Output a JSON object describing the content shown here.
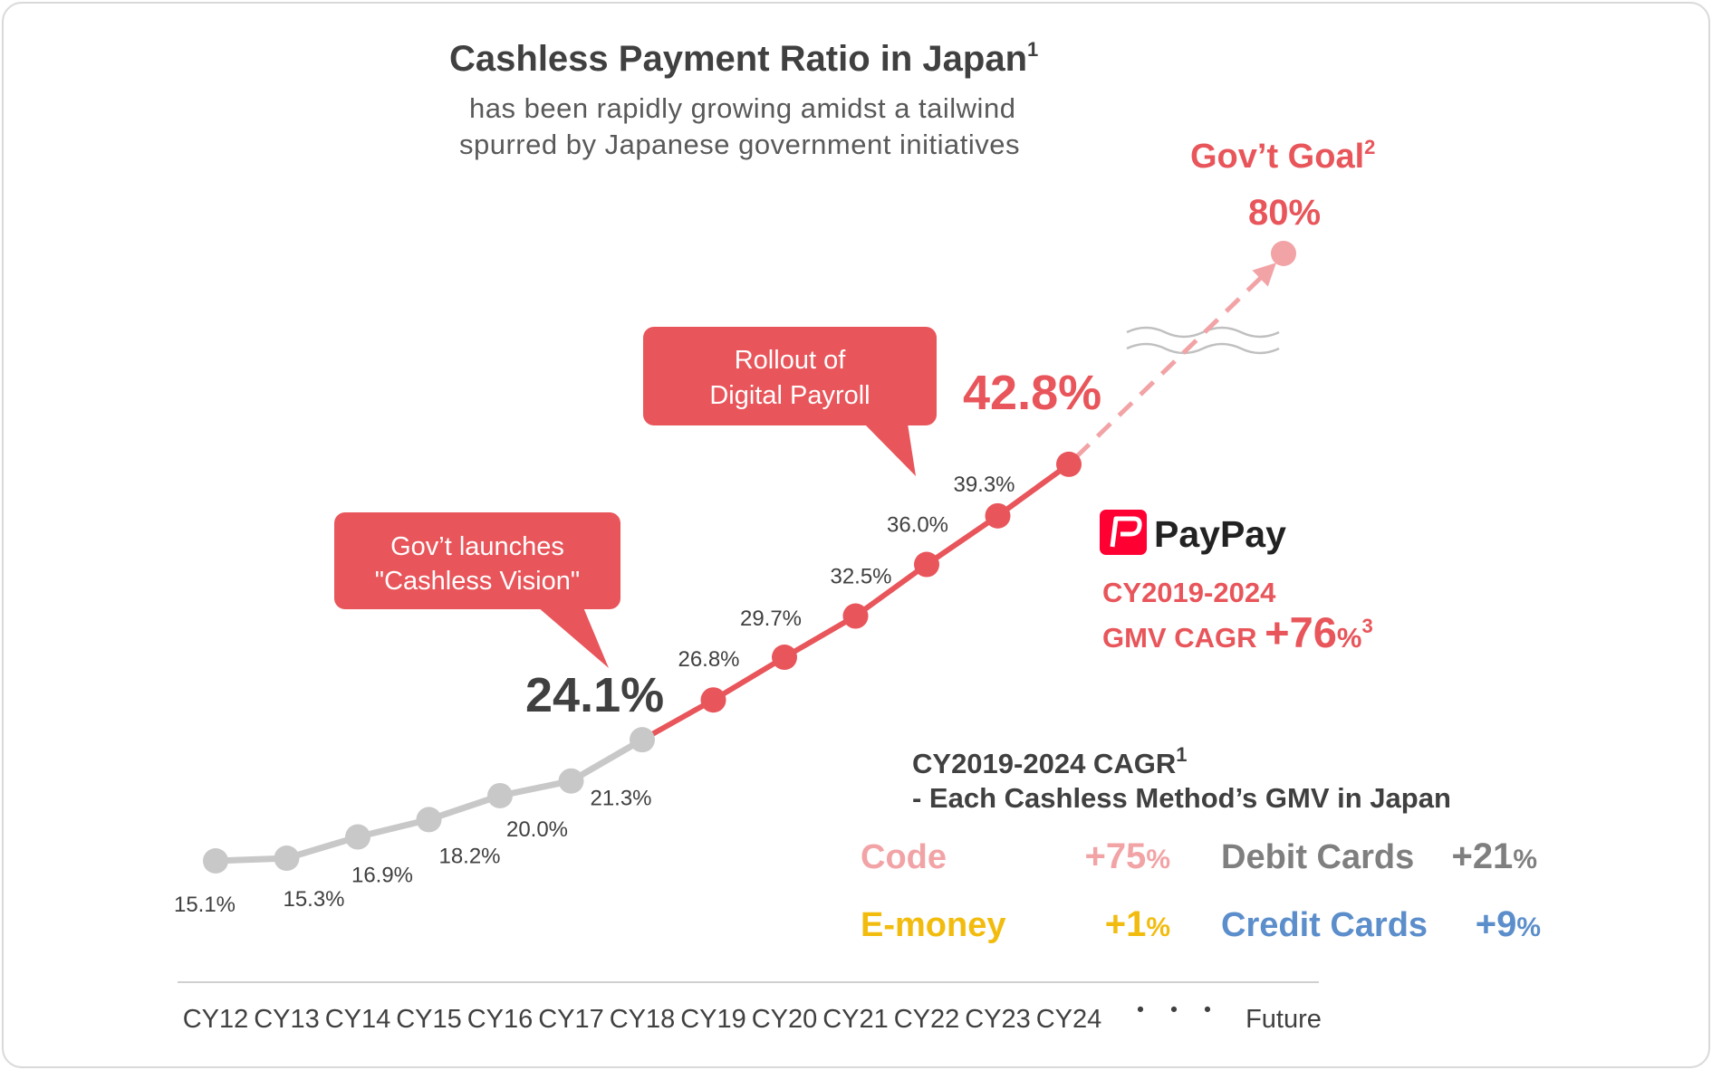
{
  "header": {
    "title": "Cashless Payment Ratio in Japan",
    "title_sup": "1",
    "subtitle_line1": "has been rapidly growing amidst a tailwind",
    "subtitle_line2": "spurred by Japanese government initiatives"
  },
  "callouts": {
    "vision_line1": "Gov’t launches",
    "vision_line2": "\"Cashless Vision\"",
    "payroll_line1": "Rollout of",
    "payroll_line2": "Digital Payroll"
  },
  "highlights": {
    "cy18": "24.1%",
    "cy24": "42.8%"
  },
  "goal": {
    "title": "Gov’t Goal",
    "title_sup": "2",
    "value_label": "80%",
    "value": 80
  },
  "paypay": {
    "brand": "PayPay",
    "period": "CY2019-2024",
    "cagr_prefix": "GMV CAGR ",
    "cagr_value": "+76",
    "cagr_unit": "%",
    "cagr_sup": "3"
  },
  "cagr_panel": {
    "title": "CY2019-2024 CAGR",
    "title_sup": "1",
    "subtitle": "- Each Cashless Method’s GMV in Japan",
    "methods": [
      {
        "name": "Code",
        "value": "+75",
        "unit": "%",
        "color": "#f2a3a6"
      },
      {
        "name": "Debit Cards",
        "value": "+21",
        "unit": "%",
        "color": "#7f7f7f"
      },
      {
        "name": "E-money",
        "value": "+1",
        "unit": "%",
        "color": "#f2bc0f"
      },
      {
        "name": "Credit Cards",
        "value": "+9",
        "unit": "%",
        "color": "#5b8ecb"
      }
    ]
  },
  "axis": {
    "ellipsis": "・ ・ ・",
    "future_label": "Future"
  },
  "colors": {
    "past": "#c8c8c8",
    "recent": "#e8555a",
    "projection": "#f2a3a6",
    "text_dark": "#404040",
    "paypay_red": "#ff0033"
  },
  "chart_data": {
    "type": "line",
    "title": "Cashless Payment Ratio in Japan",
    "categories": [
      "CY12",
      "CY13",
      "CY14",
      "CY15",
      "CY16",
      "CY17",
      "CY18",
      "CY19",
      "CY20",
      "CY21",
      "CY22",
      "CY23",
      "CY24",
      "Future"
    ],
    "values": [
      15.1,
      15.3,
      16.9,
      18.2,
      20.0,
      21.3,
      24.1,
      26.8,
      29.7,
      32.5,
      36.0,
      39.3,
      42.8,
      80
    ],
    "labels": [
      "15.1%",
      "15.3%",
      "16.9%",
      "18.2%",
      "20.0%",
      "21.3%",
      "24.1%",
      "26.8%",
      "29.7%",
      "32.5%",
      "36.0%",
      "39.3%",
      "42.8%",
      "80%"
    ],
    "segments": {
      "grey": [
        "CY12",
        "CY18"
      ],
      "red": [
        "CY18",
        "CY24"
      ],
      "dashed_projection": [
        "CY24",
        "Future"
      ]
    },
    "axis_break": true,
    "grid": false
  }
}
